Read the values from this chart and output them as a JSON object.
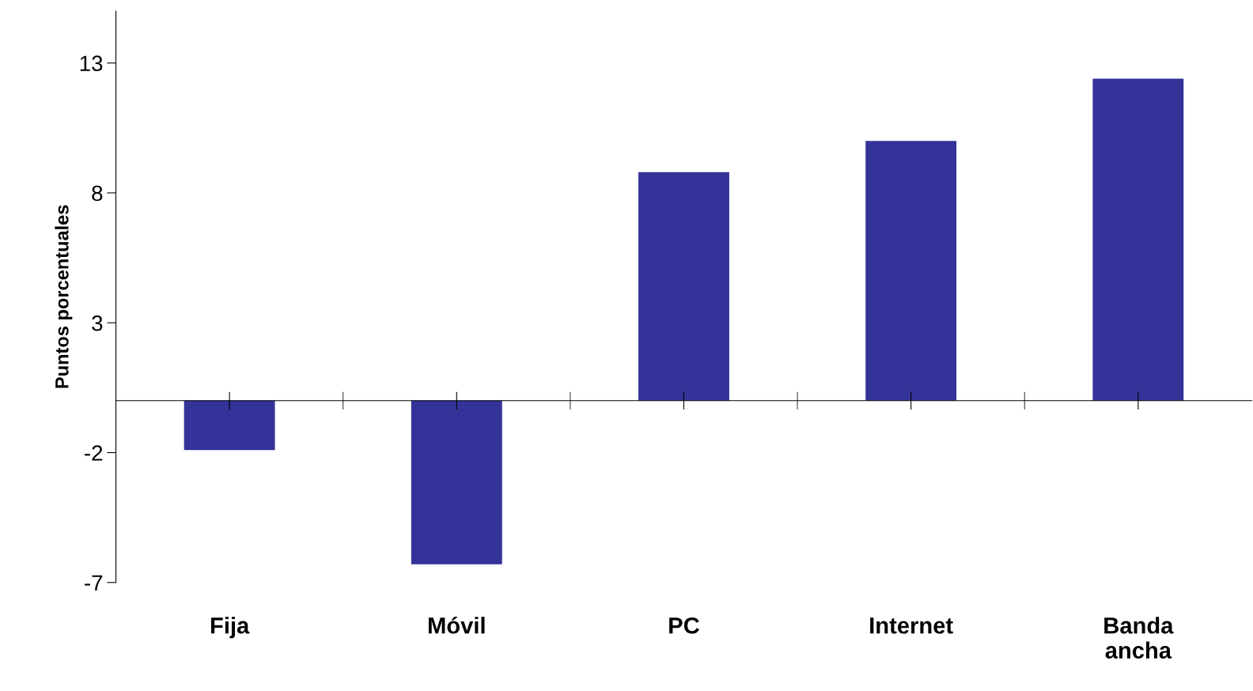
{
  "chart_data": {
    "type": "bar",
    "ylabel": "Puntos porcentuales",
    "categories": [
      "Fija",
      "Móvil",
      "PC",
      "Internet",
      "Banda ancha"
    ],
    "values": [
      -1.9,
      -6.3,
      8.8,
      10.0,
      12.4
    ],
    "color": "#343399",
    "ylim": [
      -7,
      15
    ],
    "yticks": [
      -7,
      -2,
      3,
      8,
      13
    ],
    "grid": false,
    "legend": false
  }
}
